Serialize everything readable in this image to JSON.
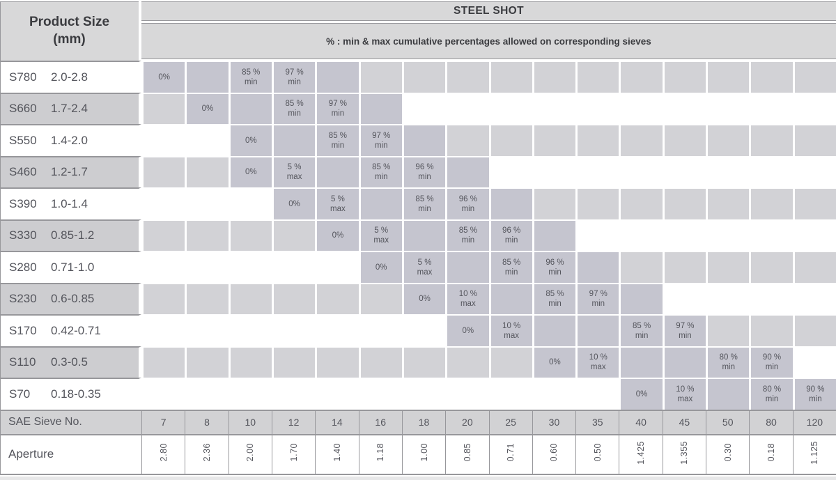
{
  "header": {
    "product_size_line1": "Product Size",
    "product_size_line2": "(mm)",
    "title": "STEEL SHOT",
    "subtitle": "% : min & max cumulative percentages allowed on corresponding sieves"
  },
  "footer": {
    "sieve_row_label": "SAE Sieve No.",
    "aperture_row_label": "Aperture"
  },
  "columns": [
    {
      "sieve": "7",
      "aperture": "2.80"
    },
    {
      "sieve": "8",
      "aperture": "2.36"
    },
    {
      "sieve": "10",
      "aperture": "2.00"
    },
    {
      "sieve": "12",
      "aperture": "1.70"
    },
    {
      "sieve": "14",
      "aperture": "1.40"
    },
    {
      "sieve": "16",
      "aperture": "1.18"
    },
    {
      "sieve": "18",
      "aperture": "1.00"
    },
    {
      "sieve": "20",
      "aperture": "0.85"
    },
    {
      "sieve": "25",
      "aperture": "0.71"
    },
    {
      "sieve": "30",
      "aperture": "0.60"
    },
    {
      "sieve": "35",
      "aperture": "0.50"
    },
    {
      "sieve": "40",
      "aperture": "1.425"
    },
    {
      "sieve": "45",
      "aperture": "1.355"
    },
    {
      "sieve": "50",
      "aperture": "0.30"
    },
    {
      "sieve": "80",
      "aperture": "0.18"
    },
    {
      "sieve": "120",
      "aperture": "1.125"
    }
  ],
  "rows": [
    {
      "code": "S780",
      "range": "2.0-2.8",
      "shade": "white",
      "cells": [
        {
          "bg": "band",
          "lines": [
            "0%"
          ]
        },
        {
          "bg": "band",
          "lines": []
        },
        {
          "bg": "band",
          "lines": [
            "85 %",
            "min"
          ]
        },
        {
          "bg": "band",
          "lines": [
            "97 %",
            "min"
          ]
        },
        {
          "bg": "band",
          "lines": []
        },
        {
          "bg": "inactive",
          "lines": []
        },
        {
          "bg": "inactive",
          "lines": []
        },
        {
          "bg": "inactive",
          "lines": []
        },
        {
          "bg": "inactive",
          "lines": []
        },
        {
          "bg": "inactive",
          "lines": []
        },
        {
          "bg": "inactive",
          "lines": []
        },
        {
          "bg": "inactive",
          "lines": []
        },
        {
          "bg": "inactive",
          "lines": []
        },
        {
          "bg": "inactive",
          "lines": []
        },
        {
          "bg": "inactive",
          "lines": []
        },
        {
          "bg": "inactive",
          "lines": []
        }
      ]
    },
    {
      "code": "S660",
      "range": "1.7-2.4",
      "shade": "gray",
      "cells": [
        {
          "bg": "inactive",
          "lines": []
        },
        {
          "bg": "band",
          "lines": [
            "0%"
          ]
        },
        {
          "bg": "band",
          "lines": []
        },
        {
          "bg": "band",
          "lines": [
            "85 %",
            "min"
          ]
        },
        {
          "bg": "band",
          "lines": [
            "97 %",
            "min"
          ]
        },
        {
          "bg": "band",
          "lines": []
        },
        {
          "bg": "plain",
          "lines": []
        },
        {
          "bg": "plain",
          "lines": []
        },
        {
          "bg": "plain",
          "lines": []
        },
        {
          "bg": "plain",
          "lines": []
        },
        {
          "bg": "plain",
          "lines": []
        },
        {
          "bg": "plain",
          "lines": []
        },
        {
          "bg": "plain",
          "lines": []
        },
        {
          "bg": "plain",
          "lines": []
        },
        {
          "bg": "plain",
          "lines": []
        },
        {
          "bg": "plain",
          "lines": []
        }
      ]
    },
    {
      "code": "S550",
      "range": "1.4-2.0",
      "shade": "white",
      "cells": [
        {
          "bg": "plain",
          "lines": []
        },
        {
          "bg": "plain",
          "lines": []
        },
        {
          "bg": "band",
          "lines": [
            "0%"
          ]
        },
        {
          "bg": "band",
          "lines": []
        },
        {
          "bg": "band",
          "lines": [
            "85 %",
            "min"
          ]
        },
        {
          "bg": "band",
          "lines": [
            "97 %",
            "min"
          ]
        },
        {
          "bg": "band",
          "lines": []
        },
        {
          "bg": "inactive",
          "lines": []
        },
        {
          "bg": "inactive",
          "lines": []
        },
        {
          "bg": "inactive",
          "lines": []
        },
        {
          "bg": "inactive",
          "lines": []
        },
        {
          "bg": "inactive",
          "lines": []
        },
        {
          "bg": "inactive",
          "lines": []
        },
        {
          "bg": "inactive",
          "lines": []
        },
        {
          "bg": "inactive",
          "lines": []
        },
        {
          "bg": "inactive",
          "lines": []
        }
      ]
    },
    {
      "code": "S460",
      "range": "1.2-1.7",
      "shade": "gray",
      "cells": [
        {
          "bg": "inactive",
          "lines": []
        },
        {
          "bg": "inactive",
          "lines": []
        },
        {
          "bg": "band",
          "lines": [
            "0%"
          ]
        },
        {
          "bg": "band",
          "lines": [
            "5 %",
            "max"
          ]
        },
        {
          "bg": "band",
          "lines": []
        },
        {
          "bg": "band",
          "lines": [
            "85 %",
            "min"
          ]
        },
        {
          "bg": "band",
          "lines": [
            "96 %",
            "min"
          ]
        },
        {
          "bg": "band",
          "lines": []
        },
        {
          "bg": "plain",
          "lines": []
        },
        {
          "bg": "plain",
          "lines": []
        },
        {
          "bg": "plain",
          "lines": []
        },
        {
          "bg": "plain",
          "lines": []
        },
        {
          "bg": "plain",
          "lines": []
        },
        {
          "bg": "plain",
          "lines": []
        },
        {
          "bg": "plain",
          "lines": []
        },
        {
          "bg": "plain",
          "lines": []
        }
      ]
    },
    {
      "code": "S390",
      "range": "1.0-1.4",
      "shade": "white",
      "cells": [
        {
          "bg": "plain",
          "lines": []
        },
        {
          "bg": "plain",
          "lines": []
        },
        {
          "bg": "plain",
          "lines": []
        },
        {
          "bg": "band",
          "lines": [
            "0%"
          ]
        },
        {
          "bg": "band",
          "lines": [
            "5 %",
            "max"
          ]
        },
        {
          "bg": "band",
          "lines": []
        },
        {
          "bg": "band",
          "lines": [
            "85 %",
            "min"
          ]
        },
        {
          "bg": "band",
          "lines": [
            "96 %",
            "min"
          ]
        },
        {
          "bg": "band",
          "lines": []
        },
        {
          "bg": "inactive",
          "lines": []
        },
        {
          "bg": "inactive",
          "lines": []
        },
        {
          "bg": "inactive",
          "lines": []
        },
        {
          "bg": "inactive",
          "lines": []
        },
        {
          "bg": "inactive",
          "lines": []
        },
        {
          "bg": "inactive",
          "lines": []
        },
        {
          "bg": "inactive",
          "lines": []
        }
      ]
    },
    {
      "code": "S330",
      "range": "0.85-1.2",
      "shade": "gray",
      "cells": [
        {
          "bg": "inactive",
          "lines": []
        },
        {
          "bg": "inactive",
          "lines": []
        },
        {
          "bg": "inactive",
          "lines": []
        },
        {
          "bg": "inactive",
          "lines": []
        },
        {
          "bg": "band",
          "lines": [
            "0%"
          ]
        },
        {
          "bg": "band",
          "lines": [
            "5 %",
            "max"
          ]
        },
        {
          "bg": "band",
          "lines": []
        },
        {
          "bg": "band",
          "lines": [
            "85 %",
            "min"
          ]
        },
        {
          "bg": "band",
          "lines": [
            "96 %",
            "min"
          ]
        },
        {
          "bg": "band",
          "lines": []
        },
        {
          "bg": "plain",
          "lines": []
        },
        {
          "bg": "plain",
          "lines": []
        },
        {
          "bg": "plain",
          "lines": []
        },
        {
          "bg": "plain",
          "lines": []
        },
        {
          "bg": "plain",
          "lines": []
        },
        {
          "bg": "plain",
          "lines": []
        }
      ]
    },
    {
      "code": "S280",
      "range": "0.71-1.0",
      "shade": "white",
      "cells": [
        {
          "bg": "plain",
          "lines": []
        },
        {
          "bg": "plain",
          "lines": []
        },
        {
          "bg": "plain",
          "lines": []
        },
        {
          "bg": "plain",
          "lines": []
        },
        {
          "bg": "plain",
          "lines": []
        },
        {
          "bg": "band",
          "lines": [
            "0%"
          ]
        },
        {
          "bg": "band",
          "lines": [
            "5 %",
            "max"
          ]
        },
        {
          "bg": "band",
          "lines": []
        },
        {
          "bg": "band",
          "lines": [
            "85 %",
            "min"
          ]
        },
        {
          "bg": "band",
          "lines": [
            "96 %",
            "min"
          ]
        },
        {
          "bg": "band",
          "lines": []
        },
        {
          "bg": "inactive",
          "lines": []
        },
        {
          "bg": "inactive",
          "lines": []
        },
        {
          "bg": "inactive",
          "lines": []
        },
        {
          "bg": "inactive",
          "lines": []
        },
        {
          "bg": "inactive",
          "lines": []
        }
      ]
    },
    {
      "code": "S230",
      "range": "0.6-0.85",
      "shade": "gray",
      "cells": [
        {
          "bg": "inactive",
          "lines": []
        },
        {
          "bg": "inactive",
          "lines": []
        },
        {
          "bg": "inactive",
          "lines": []
        },
        {
          "bg": "inactive",
          "lines": []
        },
        {
          "bg": "inactive",
          "lines": []
        },
        {
          "bg": "inactive",
          "lines": []
        },
        {
          "bg": "band",
          "lines": [
            "0%"
          ]
        },
        {
          "bg": "band",
          "lines": [
            "10 %",
            "max"
          ]
        },
        {
          "bg": "band",
          "lines": []
        },
        {
          "bg": "band",
          "lines": [
            "85 %",
            "min"
          ]
        },
        {
          "bg": "band",
          "lines": [
            "97 %",
            "min"
          ]
        },
        {
          "bg": "band",
          "lines": []
        },
        {
          "bg": "plain",
          "lines": []
        },
        {
          "bg": "plain",
          "lines": []
        },
        {
          "bg": "plain",
          "lines": []
        },
        {
          "bg": "plain",
          "lines": []
        }
      ]
    },
    {
      "code": "S170",
      "range": "0.42-0.71",
      "shade": "white",
      "cells": [
        {
          "bg": "plain",
          "lines": []
        },
        {
          "bg": "plain",
          "lines": []
        },
        {
          "bg": "plain",
          "lines": []
        },
        {
          "bg": "plain",
          "lines": []
        },
        {
          "bg": "plain",
          "lines": []
        },
        {
          "bg": "plain",
          "lines": []
        },
        {
          "bg": "plain",
          "lines": []
        },
        {
          "bg": "band",
          "lines": [
            "0%"
          ]
        },
        {
          "bg": "band",
          "lines": [
            "10 %",
            "max"
          ]
        },
        {
          "bg": "band",
          "lines": []
        },
        {
          "bg": "band",
          "lines": []
        },
        {
          "bg": "band",
          "lines": [
            "85 %",
            "min"
          ]
        },
        {
          "bg": "band",
          "lines": [
            "97 %",
            "min"
          ]
        },
        {
          "bg": "inactive",
          "lines": []
        },
        {
          "bg": "inactive",
          "lines": []
        },
        {
          "bg": "inactive",
          "lines": []
        }
      ]
    },
    {
      "code": "S110",
      "range": "0.3-0.5",
      "shade": "gray",
      "cells": [
        {
          "bg": "inactive",
          "lines": []
        },
        {
          "bg": "inactive",
          "lines": []
        },
        {
          "bg": "inactive",
          "lines": []
        },
        {
          "bg": "inactive",
          "lines": []
        },
        {
          "bg": "inactive",
          "lines": []
        },
        {
          "bg": "inactive",
          "lines": []
        },
        {
          "bg": "inactive",
          "lines": []
        },
        {
          "bg": "inactive",
          "lines": []
        },
        {
          "bg": "inactive",
          "lines": []
        },
        {
          "bg": "band",
          "lines": [
            "0%"
          ]
        },
        {
          "bg": "band",
          "lines": [
            "10 %",
            "max"
          ]
        },
        {
          "bg": "band",
          "lines": []
        },
        {
          "bg": "band",
          "lines": []
        },
        {
          "bg": "band",
          "lines": [
            "80 %",
            "min"
          ]
        },
        {
          "bg": "band",
          "lines": [
            "90 %",
            "min"
          ]
        },
        {
          "bg": "plain",
          "lines": []
        }
      ]
    },
    {
      "code": "S70",
      "range": "0.18-0.35",
      "shade": "white",
      "cells": [
        {
          "bg": "plain",
          "lines": []
        },
        {
          "bg": "plain",
          "lines": []
        },
        {
          "bg": "plain",
          "lines": []
        },
        {
          "bg": "plain",
          "lines": []
        },
        {
          "bg": "plain",
          "lines": []
        },
        {
          "bg": "plain",
          "lines": []
        },
        {
          "bg": "plain",
          "lines": []
        },
        {
          "bg": "plain",
          "lines": []
        },
        {
          "bg": "plain",
          "lines": []
        },
        {
          "bg": "plain",
          "lines": []
        },
        {
          "bg": "plain",
          "lines": []
        },
        {
          "bg": "band",
          "lines": [
            "0%"
          ]
        },
        {
          "bg": "band",
          "lines": [
            "10 %",
            "max"
          ]
        },
        {
          "bg": "band",
          "lines": []
        },
        {
          "bg": "band",
          "lines": [
            "80 %",
            "min"
          ]
        },
        {
          "bg": "band",
          "lines": [
            "90 %",
            "min"
          ]
        }
      ]
    }
  ],
  "colors": {
    "header_bg": "#d8d8d9",
    "band_cell": "#c5c5cf",
    "inactive_cell": "#d2d2d6",
    "product_gray": "#cdcdd0",
    "sieve_row_bg": "#d2d2d4",
    "grid_line": "#97979b",
    "text_dark": "#3b3c40",
    "text_medium": "#54555c",
    "page_strip": "#e7e7e8"
  }
}
